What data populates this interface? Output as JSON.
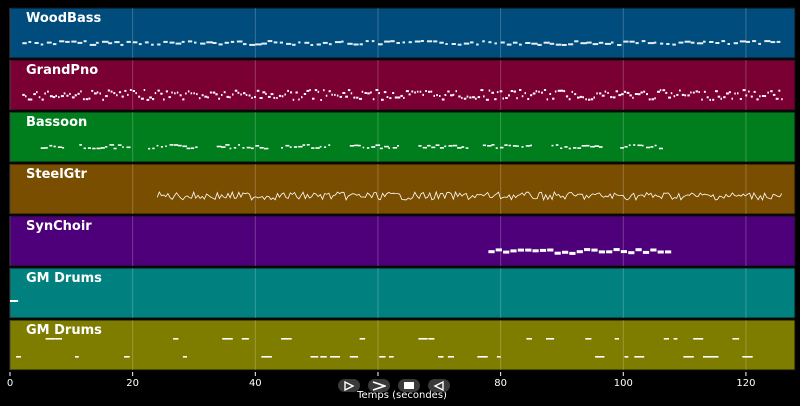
{
  "chart_data": {
    "type": "piano-roll",
    "xlabel": "Temps (secondes)",
    "xlim": [
      0,
      128
    ],
    "xticks": [
      0,
      20,
      40,
      60,
      80,
      100,
      120
    ],
    "grid": true,
    "tracks": [
      {
        "name": "WoodBass",
        "color": "#004c7c",
        "note_color": "#e6eef2",
        "start": 2,
        "end": 126,
        "density": "dense",
        "style": "bars"
      },
      {
        "name": "GrandPno",
        "color": "#7a0033",
        "note_color": "#ffffff",
        "start": 2,
        "end": 126,
        "density": "very-dense",
        "style": "bars"
      },
      {
        "name": "Bassoon",
        "color": "#007d1c",
        "note_color": "#ffffff",
        "start": 5,
        "end": 106,
        "density": "phrased",
        "style": "dots"
      },
      {
        "name": "SteelGtr",
        "color": "#7a4e00",
        "note_color": "#ffffff",
        "start": 24,
        "end": 126,
        "density": "very-dense",
        "style": "zigzag"
      },
      {
        "name": "SynChoir",
        "color": "#4e007a",
        "note_color": "#ffffff",
        "start": 78,
        "end": 107,
        "density": "thick",
        "style": "bars"
      },
      {
        "name": "GM Drums",
        "color": "#00807f",
        "note_color": "#ffffff",
        "start": 0,
        "end": 1,
        "density": "single",
        "style": "bars"
      },
      {
        "name": "GM Drums",
        "color": "#7f7d00",
        "note_color": "#ffffff",
        "start": 1,
        "end": 126,
        "density": "sparse",
        "style": "dots"
      }
    ]
  },
  "transport": {
    "icons": [
      "play-outline-icon",
      "play-icon",
      "stop-icon",
      "rewind-icon"
    ]
  }
}
